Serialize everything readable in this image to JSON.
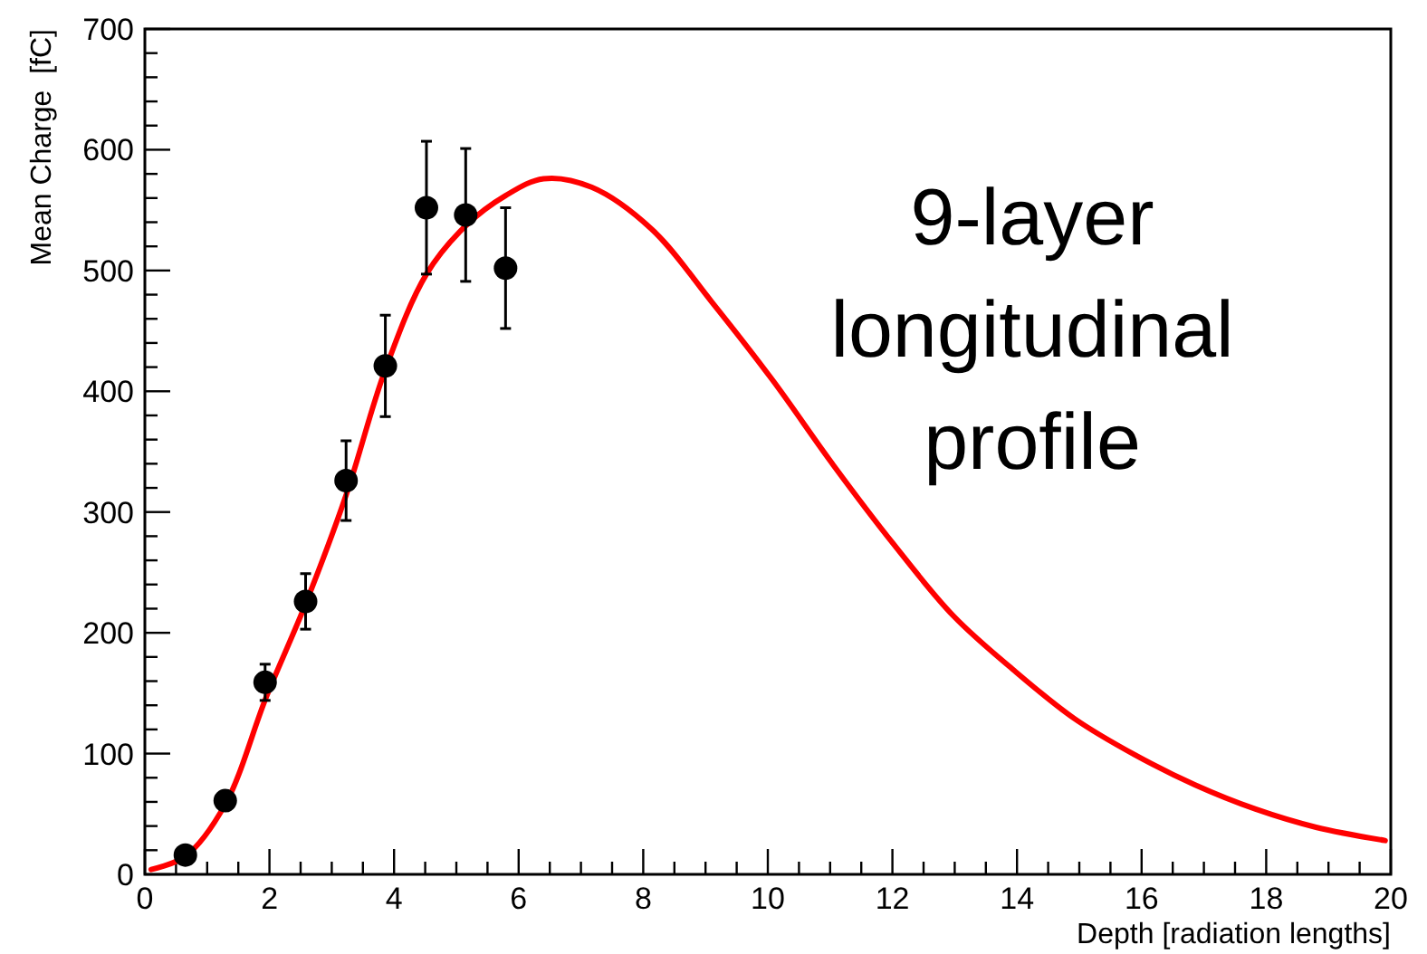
{
  "chart_data": {
    "type": "scatter",
    "xlabel": "Depth [radiation lengths]",
    "ylabel": "Mean Charge  [fC]",
    "annotations": [
      "9-layer\nlongitudinal\nprofile"
    ],
    "xlim": [
      0,
      20
    ],
    "ylim": [
      0,
      700
    ],
    "xticks": [
      0,
      {
        "value": 0.5,
        "label": null
      },
      {
        "value": 1,
        "label": null
      },
      {
        "value": 1.5,
        "label": null
      },
      2,
      {
        "value": 2.5,
        "label": null
      },
      {
        "value": 3,
        "label": null
      },
      {
        "value": 3.5,
        "label": null
      },
      4,
      {
        "value": 4.5,
        "label": null
      },
      {
        "value": 5,
        "label": null
      },
      {
        "value": 5.5,
        "label": null
      },
      6,
      {
        "value": 6.5,
        "label": null
      },
      {
        "value": 7,
        "label": null
      },
      {
        "value": 7.5,
        "label": null
      },
      8,
      {
        "value": 8.5,
        "label": null
      },
      {
        "value": 9,
        "label": null
      },
      {
        "value": 9.5,
        "label": null
      },
      10,
      {
        "value": 10.5,
        "label": null
      },
      {
        "value": 11,
        "label": null
      },
      {
        "value": 11.5,
        "label": null
      },
      12,
      {
        "value": 12.5,
        "label": null
      },
      {
        "value": 13,
        "label": null
      },
      {
        "value": 13.5,
        "label": null
      },
      14,
      {
        "value": 14.5,
        "label": null
      },
      {
        "value": 15,
        "label": null
      },
      {
        "value": 15.5,
        "label": null
      },
      16,
      {
        "value": 16.5,
        "label": null
      },
      {
        "value": 17,
        "label": null
      },
      {
        "value": 17.5,
        "label": null
      },
      18,
      {
        "value": 18.5,
        "label": null
      },
      {
        "value": 19,
        "label": null
      },
      {
        "value": 19.5,
        "label": null
      },
      20
    ],
    "yticks": [
      0,
      {
        "value": 20,
        "label": null
      },
      {
        "value": 40,
        "label": null
      },
      {
        "value": 60,
        "label": null
      },
      {
        "value": 80,
        "label": null
      },
      100,
      {
        "value": 120,
        "label": null
      },
      {
        "value": 140,
        "label": null
      },
      {
        "value": 160,
        "label": null
      },
      {
        "value": 180,
        "label": null
      },
      200,
      {
        "value": 220,
        "label": null
      },
      {
        "value": 240,
        "label": null
      },
      {
        "value": 260,
        "label": null
      },
      {
        "value": 280,
        "label": null
      },
      300,
      {
        "value": 320,
        "label": null
      },
      {
        "value": 340,
        "label": null
      },
      {
        "value": 360,
        "label": null
      },
      {
        "value": 380,
        "label": null
      },
      400,
      {
        "value": 420,
        "label": null
      },
      {
        "value": 440,
        "label": null
      },
      {
        "value": 460,
        "label": null
      },
      {
        "value": 480,
        "label": null
      },
      500,
      {
        "value": 520,
        "label": null
      },
      {
        "value": 540,
        "label": null
      },
      {
        "value": 560,
        "label": null
      },
      {
        "value": 580,
        "label": null
      },
      600,
      {
        "value": 620,
        "label": null
      },
      {
        "value": 640,
        "label": null
      },
      {
        "value": 660,
        "label": null
      },
      {
        "value": 680,
        "label": null
      },
      700
    ],
    "grid": false,
    "series": [
      {
        "color": "#000000",
        "marker": "circle",
        "x": [
          0.65,
          1.29,
          1.93,
          2.58,
          3.23,
          3.86,
          4.52,
          5.15,
          5.79
        ],
        "values": [
          16,
          61,
          159,
          226,
          326,
          421,
          552,
          546,
          502
        ],
        "errors": [
          null,
          null,
          15,
          23,
          33,
          42,
          55,
          55,
          50
        ]
      },
      {
        "type": "line",
        "color": "#ff0000",
        "marker": "none",
        "line_style": "solid",
        "x": [
          0.1,
          0.65,
          1.29,
          1.95,
          2.58,
          3.23,
          3.86,
          4.52,
          5.15,
          5.79,
          6.4,
          7.17,
          8.14,
          9.1,
          10.08,
          11.05,
          12.01,
          12.98,
          13.95,
          14.92,
          15.89,
          16.86,
          17.83,
          18.8,
          19.91
        ],
        "values": [
          4,
          15,
          58,
          147,
          224,
          314,
          418,
          497,
          537,
          562,
          576,
          569,
          534,
          474,
          409,
          339,
          274,
          214,
          169,
          129,
          99,
          74,
          54,
          39,
          28
        ]
      }
    ]
  }
}
